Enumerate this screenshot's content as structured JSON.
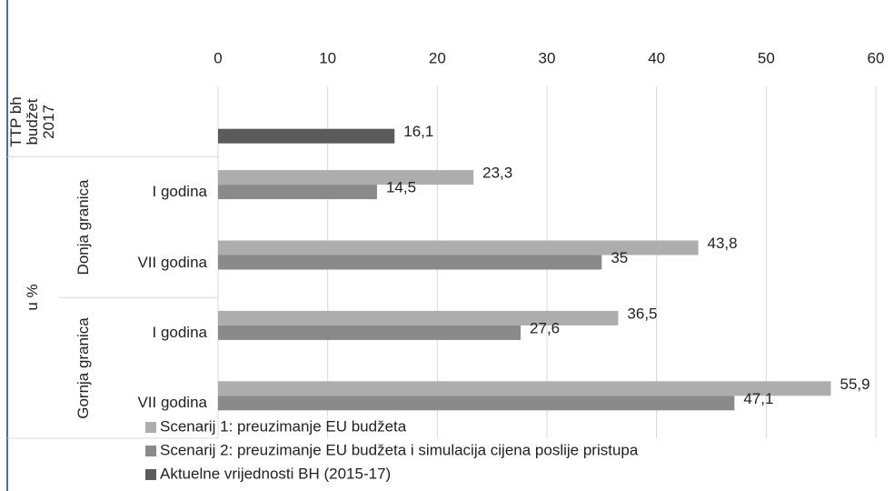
{
  "chart_data": {
    "type": "hbar",
    "categories": [
      "TTP bh budžet 2017",
      "I godina",
      "VII godina",
      "I godina",
      "VII godina"
    ],
    "groups": [
      {
        "name": "u %",
        "children": [
          {
            "name": "Donja granica",
            "size": 2
          },
          {
            "name": "Gornja granica",
            "size": 2
          }
        ]
      }
    ],
    "series": [
      {
        "name": "Scenarij 1: preuzimanje EU budžeta",
        "color": "#adadad",
        "values": [
          null,
          23.3,
          43.8,
          36.5,
          55.9
        ],
        "value_labels": [
          null,
          "23,3",
          "43,8",
          "36,5",
          "55,9"
        ]
      },
      {
        "name": "Scenarij 2: preuzimanje EU budžeta i simulacija cijena poslije pristupa",
        "color": "#8a8a8a",
        "values": [
          null,
          14.5,
          35,
          27.6,
          47.1
        ],
        "value_labels": [
          null,
          "14,5",
          "35",
          "27,6",
          "47,1"
        ]
      },
      {
        "name": "Aktuelne vrijednosti BH (2015-17)",
        "color": "#5b5b5b",
        "values": [
          16.1,
          null,
          null,
          null,
          null
        ],
        "value_labels": [
          "16,1",
          null,
          null,
          null,
          null
        ]
      }
    ],
    "xlim": [
      0,
      60
    ],
    "xticks": [
      0,
      10,
      20,
      30,
      40,
      50,
      60
    ],
    "grid": true,
    "legend": "bottom-left"
  }
}
